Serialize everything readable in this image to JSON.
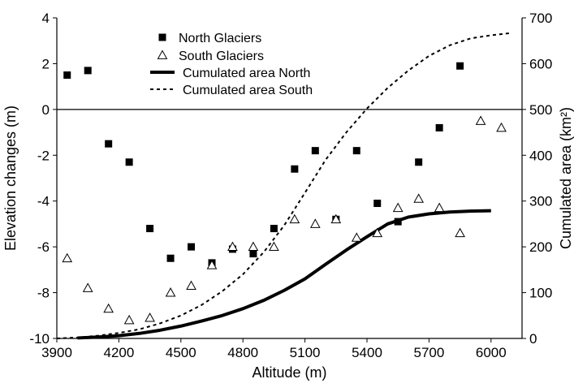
{
  "chart_data": {
    "type": "scatter",
    "xlabel": "Altitude (m)",
    "ylabel_left": "Elevation changes (m)",
    "ylabel_right": "Cumulated area (km²)",
    "xlim": [
      3900,
      6150
    ],
    "xticks": [
      3900,
      4200,
      4500,
      4800,
      5100,
      5400,
      5700,
      6000
    ],
    "ylim_left": [
      -10,
      4
    ],
    "yticks_left": [
      -10,
      -8,
      -6,
      -4,
      -2,
      0,
      2,
      4
    ],
    "ylim_right": [
      0,
      700
    ],
    "yticks_right": [
      0,
      100,
      200,
      300,
      400,
      500,
      600,
      700
    ],
    "zero_line": 0,
    "grid": false,
    "legend_position": "top-left",
    "series": [
      {
        "name": "North Glaciers",
        "kind": "scatter",
        "marker": "filled-square",
        "axis": "left",
        "x": [
          3950,
          4050,
          4150,
          4250,
          4350,
          4450,
          4550,
          4650,
          4750,
          4850,
          4950,
          5050,
          5150,
          5250,
          5350,
          5450,
          5550,
          5650,
          5750,
          5850
        ],
        "y": [
          1.5,
          1.7,
          -1.5,
          -2.3,
          -5.2,
          -6.5,
          -6.0,
          -6.7,
          -6.1,
          -6.3,
          -5.2,
          -2.6,
          -1.8,
          -4.8,
          -1.8,
          -4.1,
          -4.9,
          -2.3,
          -0.8,
          1.9
        ]
      },
      {
        "name": "South Glaciers",
        "kind": "scatter",
        "marker": "open-triangle",
        "axis": "left",
        "x": [
          3950,
          4050,
          4150,
          4250,
          4350,
          4450,
          4550,
          4650,
          4750,
          4850,
          4950,
          5050,
          5150,
          5250,
          5350,
          5450,
          5550,
          5650,
          5750,
          5850,
          5950,
          6050
        ],
        "y": [
          -6.5,
          -7.8,
          -8.7,
          -9.2,
          -9.1,
          -8.0,
          -7.7,
          -6.8,
          -6.0,
          -6.0,
          -6.0,
          -4.8,
          -5.0,
          -4.8,
          -5.6,
          -5.4,
          -4.3,
          -3.9,
          -4.3,
          -5.4,
          -0.5,
          -0.8
        ]
      },
      {
        "name": "Cumulated area North",
        "kind": "line",
        "style": "solid-thick",
        "axis": "right",
        "x": [
          4000,
          4100,
          4200,
          4300,
          4400,
          4500,
          4600,
          4700,
          4800,
          4900,
          5000,
          5100,
          5200,
          5300,
          5400,
          5500,
          5600,
          5700,
          5800,
          5900,
          6000
        ],
        "y": [
          1,
          3,
          6,
          11,
          18,
          27,
          38,
          50,
          65,
          83,
          105,
          130,
          162,
          193,
          222,
          250,
          265,
          272,
          276,
          278,
          279
        ]
      },
      {
        "name": "Cumulated area South",
        "kind": "line",
        "style": "dashed",
        "axis": "right",
        "x": [
          3900,
          4000,
          4100,
          4200,
          4300,
          4400,
          4500,
          4600,
          4700,
          4800,
          4900,
          5000,
          5100,
          5200,
          5300,
          5400,
          5500,
          5600,
          5700,
          5800,
          5900,
          6000,
          6100
        ],
        "y": [
          0,
          2,
          6,
          12,
          20,
          33,
          50,
          73,
          103,
          140,
          188,
          247,
          318,
          390,
          450,
          502,
          547,
          585,
          617,
          640,
          655,
          662,
          667
        ]
      }
    ]
  }
}
